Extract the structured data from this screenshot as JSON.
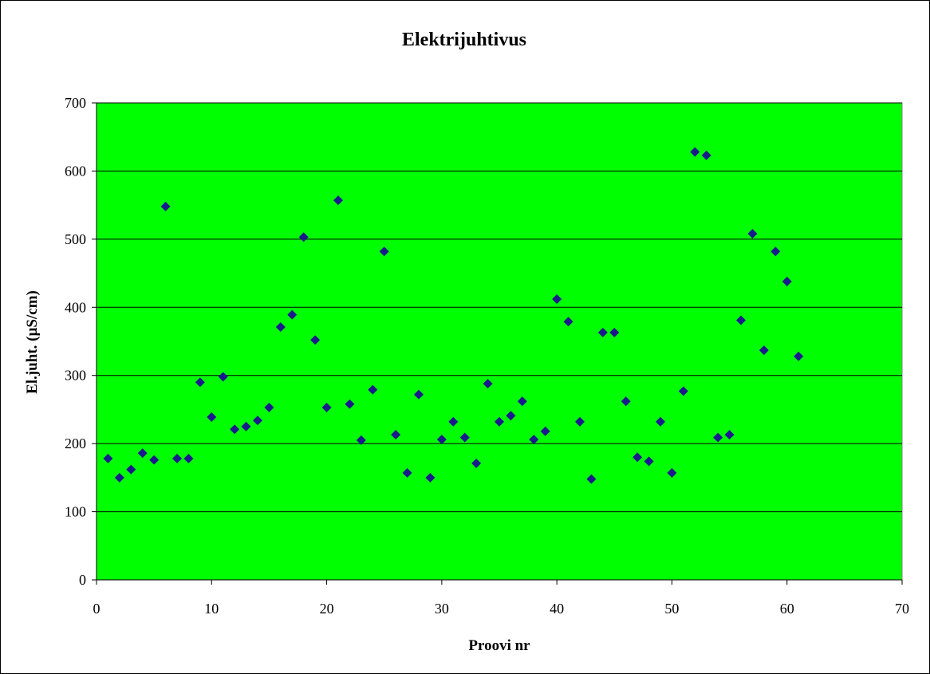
{
  "chart_data": {
    "type": "scatter",
    "title": "Elektrijuhtivus",
    "xlabel": "Proovi nr",
    "ylabel": "El.juht. (µS/cm)",
    "xlim": [
      0,
      70
    ],
    "ylim": [
      0,
      700
    ],
    "x_ticks": [
      0,
      10,
      20,
      30,
      40,
      50,
      60,
      70
    ],
    "y_ticks": [
      0,
      100,
      200,
      300,
      400,
      500,
      600,
      700
    ],
    "grid": "horizontal",
    "legend": "none",
    "colors": {
      "plot_background": "#00ff00",
      "marker": "#1a1a8c",
      "gridline": "#000000"
    },
    "series": [
      {
        "marker": "diamond",
        "points": [
          [
            1,
            178
          ],
          [
            2,
            150
          ],
          [
            3,
            162
          ],
          [
            4,
            186
          ],
          [
            5,
            176
          ],
          [
            6,
            548
          ],
          [
            7,
            178
          ],
          [
            8,
            178
          ],
          [
            9,
            290
          ],
          [
            10,
            239
          ],
          [
            11,
            298
          ],
          [
            12,
            221
          ],
          [
            13,
            225
          ],
          [
            14,
            234
          ],
          [
            15,
            253
          ],
          [
            16,
            371
          ],
          [
            17,
            389
          ],
          [
            18,
            503
          ],
          [
            19,
            352
          ],
          [
            20,
            253
          ],
          [
            21,
            557
          ],
          [
            22,
            258
          ],
          [
            23,
            205
          ],
          [
            24,
            279
          ],
          [
            25,
            482
          ],
          [
            26,
            213
          ],
          [
            27,
            157
          ],
          [
            28,
            272
          ],
          [
            29,
            150
          ],
          [
            30,
            206
          ],
          [
            31,
            232
          ],
          [
            32,
            209
          ],
          [
            33,
            171
          ],
          [
            34,
            288
          ],
          [
            35,
            232
          ],
          [
            36,
            241
          ],
          [
            37,
            262
          ],
          [
            38,
            206
          ],
          [
            39,
            218
          ],
          [
            40,
            412
          ],
          [
            41,
            379
          ],
          [
            42,
            232
          ],
          [
            43,
            148
          ],
          [
            44,
            363
          ],
          [
            45,
            363
          ],
          [
            46,
            262
          ],
          [
            47,
            180
          ],
          [
            48,
            174
          ],
          [
            49,
            232
          ],
          [
            50,
            157
          ],
          [
            51,
            277
          ],
          [
            52,
            628
          ],
          [
            53,
            623
          ],
          [
            54,
            209
          ],
          [
            55,
            213
          ],
          [
            56,
            381
          ],
          [
            57,
            508
          ],
          [
            58,
            337
          ],
          [
            59,
            482
          ],
          [
            60,
            438
          ],
          [
            61,
            328
          ]
        ]
      }
    ]
  }
}
